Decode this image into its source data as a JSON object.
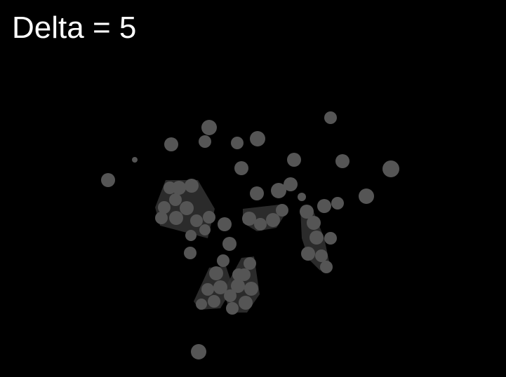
{
  "caption": "Delta = 5",
  "colors": {
    "background": "#000000",
    "caption_text": "#ffffff",
    "particle": "#555555",
    "cluster_fill": "#333333"
  }
}
